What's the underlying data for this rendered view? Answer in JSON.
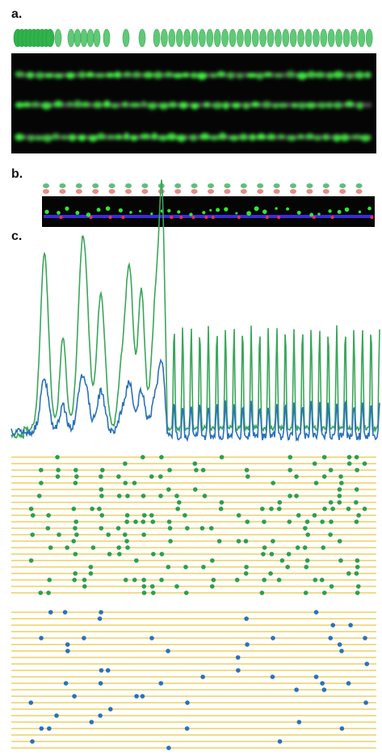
{
  "panels": {
    "a": {
      "label": "a."
    },
    "b": {
      "label": "b."
    },
    "c": {
      "label": "c."
    }
  }
}
